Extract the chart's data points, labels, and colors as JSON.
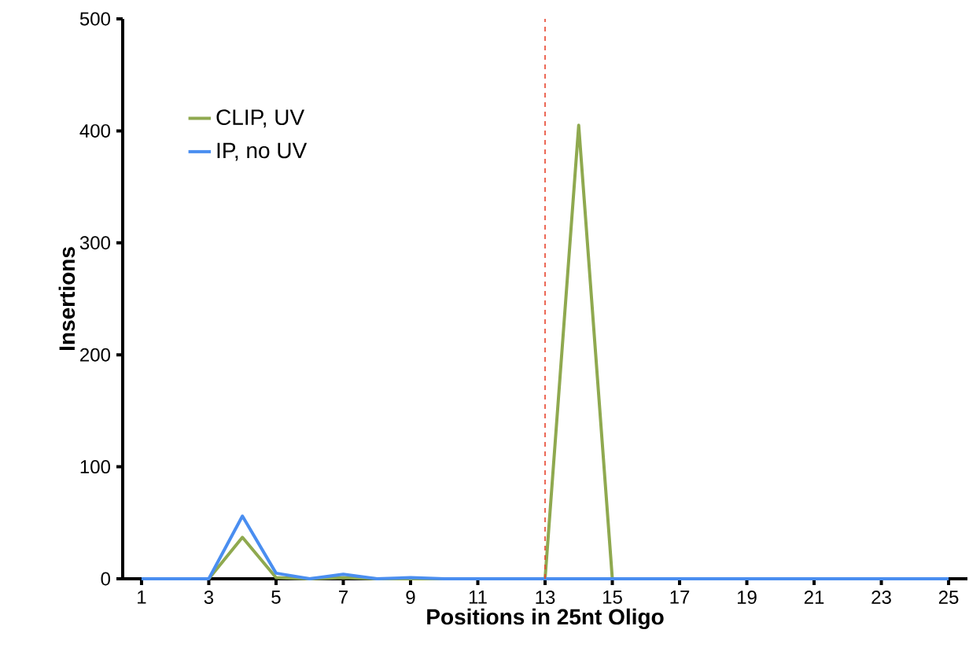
{
  "chart_data": {
    "type": "line",
    "xlabel": "Positions in 25nt Oligo",
    "ylabel": "Insertions",
    "categories": [
      "1",
      null,
      "3",
      null,
      "5",
      null,
      "7",
      null,
      "9",
      null,
      "11",
      null,
      "13",
      null,
      "15",
      null,
      "17",
      null,
      "19",
      null,
      "21",
      null,
      "23",
      null,
      "25"
    ],
    "series": [
      {
        "name": "CLIP, UV",
        "color": "#8fa94f",
        "values": [
          null,
          null,
          0,
          37,
          1,
          0,
          1,
          0,
          0,
          0,
          null,
          null,
          0,
          405,
          0,
          null,
          null,
          null,
          null,
          null,
          null,
          null,
          null,
          null,
          null
        ]
      },
      {
        "name": "IP, no UV",
        "color": "#4a8ef0",
        "values": [
          0,
          0,
          0,
          56,
          5,
          0,
          4,
          0,
          1,
          0,
          0,
          0,
          0,
          0,
          0,
          0,
          0,
          0,
          0,
          0,
          0,
          0,
          0,
          0,
          0
        ]
      }
    ],
    "ylim": [
      0,
      500
    ],
    "yticks": [
      0,
      100,
      200,
      300,
      400,
      500
    ],
    "ref_lines": [
      {
        "axis": "x",
        "value": "13",
        "color": "#e8442e",
        "line_style": "dashed"
      }
    ],
    "legend": "top left",
    "grid": false,
    "marker": "none",
    "line_style": "solid"
  }
}
